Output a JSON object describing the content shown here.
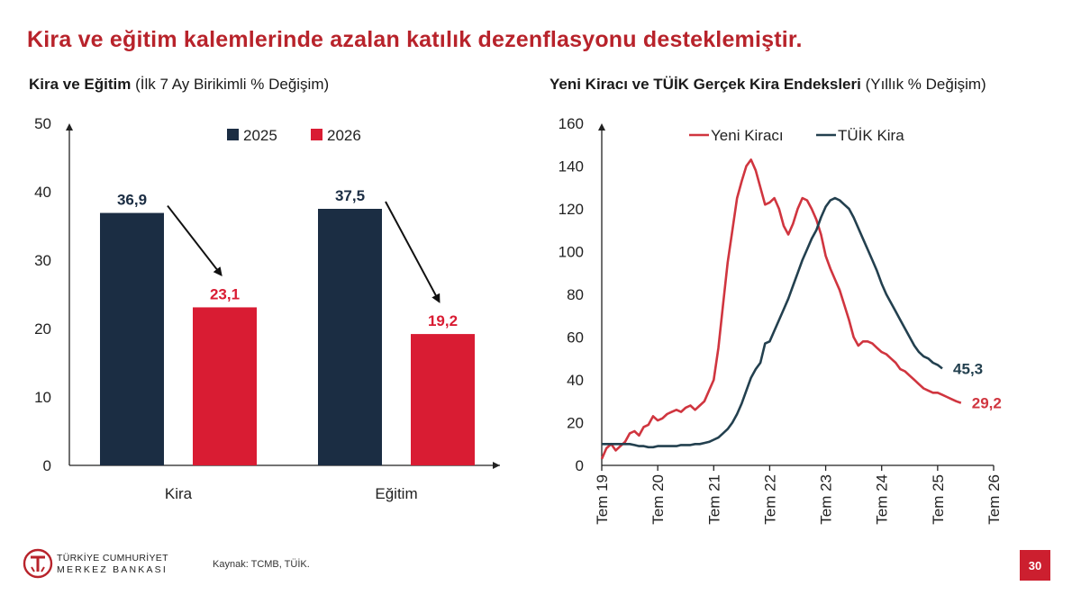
{
  "header": {
    "title": "Kira ve eğitim kalemlerinde azalan katılık dezenflasyonu desteklemiştir."
  },
  "footer": {
    "bank_line1": "TÜRKİYE CUMHURİYET",
    "bank_line2": "MERKEZ BANKASI",
    "logo_icon": "tcmb-logo-icon",
    "source": "Kaynak: TCMB, TÜİK.",
    "page_number": "30"
  },
  "colors": {
    "dark_navy": "#1b2d43",
    "red": "#d91c33",
    "line_red": "#d0353f",
    "line_dark": "#23404f",
    "title_red": "#b8232b"
  },
  "chart_data": [
    {
      "type": "bar",
      "title": "Kira ve Eğitim",
      "subtitle": "(İlk 7 Ay Birikimli % Değişim)",
      "categories": [
        "Kira",
        "Eğitim"
      ],
      "series": [
        {
          "name": "2025",
          "values": [
            36.9,
            37.5
          ],
          "labels": [
            "36,9",
            "37,5"
          ],
          "color": "#1b2d43"
        },
        {
          "name": "2026",
          "values": [
            23.1,
            19.2
          ],
          "labels": [
            "23,1",
            "19,2"
          ],
          "color": "#d91c33"
        }
      ],
      "ylim": [
        0,
        50
      ],
      "yticks": [
        0,
        10,
        20,
        30,
        40,
        50
      ],
      "grid": false,
      "legend": "top",
      "annotations": "arrows from 2025 bar to 2026 bar in each category"
    },
    {
      "type": "line",
      "title": "Yeni Kiracı ve TÜİK Gerçek Kira Endeksleri",
      "subtitle": "(Yıllık % Değişim)",
      "x_range": [
        "2019-07",
        "2026-06"
      ],
      "xticks": [
        "Tem 19",
        "Tem 20",
        "Tem 21",
        "Tem 22",
        "Tem 23",
        "Tem 24",
        "Tem 25",
        "Tem 26"
      ],
      "ylim": [
        0,
        160
      ],
      "yticks": [
        0,
        20,
        40,
        60,
        80,
        100,
        120,
        140,
        160
      ],
      "grid": false,
      "legend": "top",
      "series": [
        {
          "name": "Yeni Kiracı",
          "color": "#d0353f",
          "end_label": "29,2",
          "points": [
            [
              "2019-07",
              3
            ],
            [
              "2019-08",
              8
            ],
            [
              "2019-09",
              10
            ],
            [
              "2019-10",
              7
            ],
            [
              "2019-11",
              9
            ],
            [
              "2019-12",
              11
            ],
            [
              "2020-01",
              15
            ],
            [
              "2020-02",
              16
            ],
            [
              "2020-03",
              14
            ],
            [
              "2020-04",
              18
            ],
            [
              "2020-05",
              19
            ],
            [
              "2020-06",
              23
            ],
            [
              "2020-07",
              21
            ],
            [
              "2020-08",
              22
            ],
            [
              "2020-09",
              24
            ],
            [
              "2020-10",
              25
            ],
            [
              "2020-11",
              26
            ],
            [
              "2020-12",
              25
            ],
            [
              "2021-01",
              27
            ],
            [
              "2021-02",
              28
            ],
            [
              "2021-03",
              26
            ],
            [
              "2021-04",
              28
            ],
            [
              "2021-05",
              30
            ],
            [
              "2021-06",
              35
            ],
            [
              "2021-07",
              40
            ],
            [
              "2021-08",
              55
            ],
            [
              "2021-09",
              75
            ],
            [
              "2021-10",
              95
            ],
            [
              "2021-11",
              110
            ],
            [
              "2021-12",
              125
            ],
            [
              "2022-01",
              133
            ],
            [
              "2022-02",
              140
            ],
            [
              "2022-03",
              143
            ],
            [
              "2022-04",
              138
            ],
            [
              "2022-05",
              130
            ],
            [
              "2022-06",
              122
            ],
            [
              "2022-07",
              123
            ],
            [
              "2022-08",
              125
            ],
            [
              "2022-09",
              120
            ],
            [
              "2022-10",
              112
            ],
            [
              "2022-11",
              108
            ],
            [
              "2022-12",
              113
            ],
            [
              "2023-01",
              120
            ],
            [
              "2023-02",
              125
            ],
            [
              "2023-03",
              124
            ],
            [
              "2023-04",
              120
            ],
            [
              "2023-05",
              115
            ],
            [
              "2023-06",
              108
            ],
            [
              "2023-07",
              98
            ],
            [
              "2023-08",
              92
            ],
            [
              "2023-09",
              87
            ],
            [
              "2023-10",
              82
            ],
            [
              "2023-11",
              75
            ],
            [
              "2023-12",
              68
            ],
            [
              "2024-01",
              60
            ],
            [
              "2024-02",
              56
            ],
            [
              "2024-03",
              58
            ],
            [
              "2024-04",
              58
            ],
            [
              "2024-05",
              57
            ],
            [
              "2024-06",
              55
            ],
            [
              "2024-07",
              53
            ],
            [
              "2024-08",
              52
            ],
            [
              "2024-09",
              50
            ],
            [
              "2024-10",
              48
            ],
            [
              "2024-11",
              45
            ],
            [
              "2024-12",
              44
            ],
            [
              "2025-01",
              42
            ],
            [
              "2025-02",
              40
            ],
            [
              "2025-03",
              38
            ],
            [
              "2025-04",
              36
            ],
            [
              "2025-05",
              35
            ],
            [
              "2025-06",
              34
            ],
            [
              "2025-07",
              34
            ],
            [
              "2025-08",
              33
            ],
            [
              "2025-09",
              32
            ],
            [
              "2025-10",
              31
            ],
            [
              "2025-11",
              30
            ],
            [
              "2025-12",
              29.2
            ]
          ]
        },
        {
          "name": "TÜİK Kira",
          "color": "#23404f",
          "end_label": "45,3",
          "points": [
            [
              "2019-07",
              10
            ],
            [
              "2019-08",
              10
            ],
            [
              "2019-09",
              10
            ],
            [
              "2019-10",
              10
            ],
            [
              "2019-11",
              10
            ],
            [
              "2019-12",
              10
            ],
            [
              "2020-01",
              10
            ],
            [
              "2020-02",
              9.5
            ],
            [
              "2020-03",
              9
            ],
            [
              "2020-04",
              9
            ],
            [
              "2020-05",
              8.5
            ],
            [
              "2020-06",
              8.5
            ],
            [
              "2020-07",
              9
            ],
            [
              "2020-08",
              9
            ],
            [
              "2020-09",
              9
            ],
            [
              "2020-10",
              9
            ],
            [
              "2020-11",
              9
            ],
            [
              "2020-12",
              9.5
            ],
            [
              "2021-01",
              9.5
            ],
            [
              "2021-02",
              9.5
            ],
            [
              "2021-03",
              10
            ],
            [
              "2021-04",
              10
            ],
            [
              "2021-05",
              10.5
            ],
            [
              "2021-06",
              11
            ],
            [
              "2021-07",
              12
            ],
            [
              "2021-08",
              13
            ],
            [
              "2021-09",
              15
            ],
            [
              "2021-10",
              17
            ],
            [
              "2021-11",
              20
            ],
            [
              "2021-12",
              24
            ],
            [
              "2022-01",
              29
            ],
            [
              "2022-02",
              35
            ],
            [
              "2022-03",
              41
            ],
            [
              "2022-04",
              45
            ],
            [
              "2022-05",
              48
            ],
            [
              "2022-06",
              57
            ],
            [
              "2022-07",
              58
            ],
            [
              "2022-08",
              63
            ],
            [
              "2022-09",
              68
            ],
            [
              "2022-10",
              73
            ],
            [
              "2022-11",
              78
            ],
            [
              "2022-12",
              84
            ],
            [
              "2023-01",
              90
            ],
            [
              "2023-02",
              96
            ],
            [
              "2023-03",
              101
            ],
            [
              "2023-04",
              106
            ],
            [
              "2023-05",
              110
            ],
            [
              "2023-06",
              116
            ],
            [
              "2023-07",
              121
            ],
            [
              "2023-08",
              124
            ],
            [
              "2023-09",
              125
            ],
            [
              "2023-10",
              124
            ],
            [
              "2023-11",
              122
            ],
            [
              "2023-12",
              120
            ],
            [
              "2024-01",
              116
            ],
            [
              "2024-02",
              111
            ],
            [
              "2024-03",
              106
            ],
            [
              "2024-04",
              101
            ],
            [
              "2024-05",
              96
            ],
            [
              "2024-06",
              91
            ],
            [
              "2024-07",
              85
            ],
            [
              "2024-08",
              80
            ],
            [
              "2024-09",
              76
            ],
            [
              "2024-10",
              72
            ],
            [
              "2024-11",
              68
            ],
            [
              "2024-12",
              64
            ],
            [
              "2025-01",
              60
            ],
            [
              "2025-02",
              56
            ],
            [
              "2025-03",
              53
            ],
            [
              "2025-04",
              51
            ],
            [
              "2025-05",
              50
            ],
            [
              "2025-06",
              48
            ],
            [
              "2025-07",
              47
            ],
            [
              "2025-08",
              45.3
            ]
          ]
        }
      ]
    }
  ]
}
